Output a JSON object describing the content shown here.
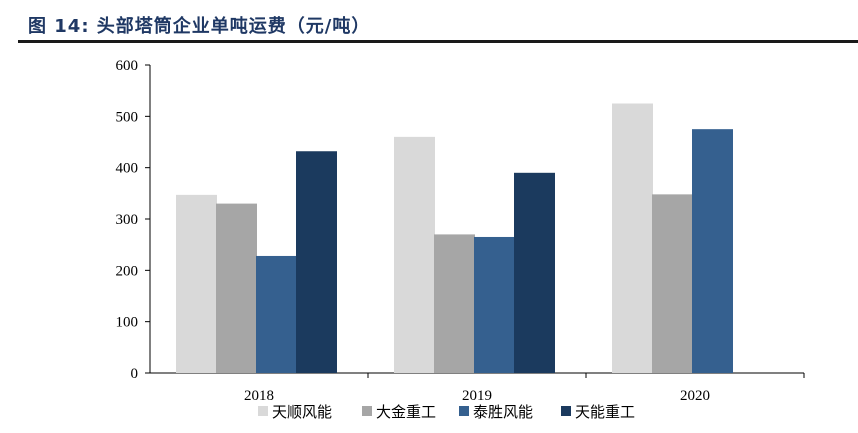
{
  "figure": {
    "title": "图 14:  头部塔筒企业单吨运费（元/吨）"
  },
  "chart_data": {
    "type": "bar",
    "categories": [
      "2018",
      "2019",
      "2020"
    ],
    "yticks": [
      "0",
      "100",
      "200",
      "300",
      "400",
      "500",
      "600"
    ],
    "ylim": [
      0,
      600
    ],
    "grid": false,
    "legend_position": "bottom",
    "series": [
      {
        "name": "天顺风能",
        "color": "#d9d9d9",
        "values": [
          347,
          460,
          525
        ]
      },
      {
        "name": "大金重工",
        "color": "#a6a6a6",
        "values": [
          330,
          270,
          348
        ]
      },
      {
        "name": "泰胜风能",
        "color": "#35608f",
        "values": [
          228,
          265,
          475
        ]
      },
      {
        "name": "天能重工",
        "color": "#1b3a5e",
        "values": [
          432,
          390,
          null
        ]
      }
    ]
  }
}
